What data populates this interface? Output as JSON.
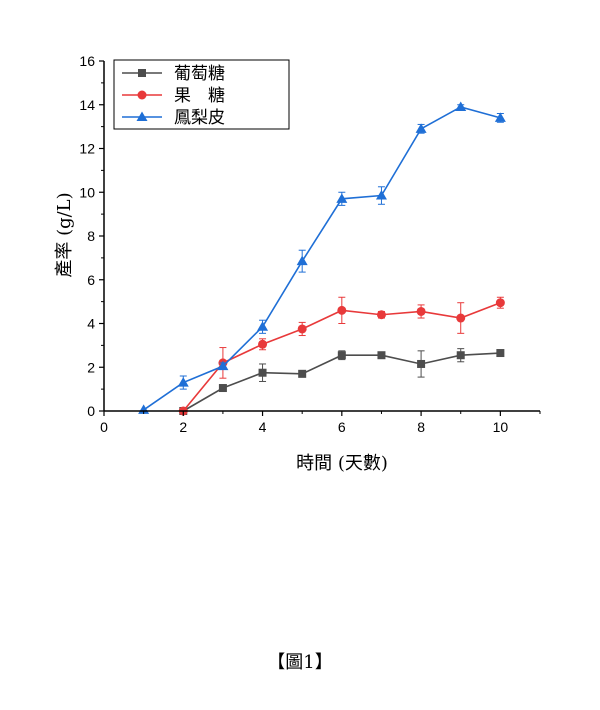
{
  "chart_data": {
    "type": "line",
    "xlabel": "時間 (天數)",
    "ylabel": "產率 (g/L)",
    "xlim": [
      0,
      11
    ],
    "ylim": [
      0,
      16
    ],
    "xticks": [
      0,
      2,
      4,
      6,
      8,
      10
    ],
    "yticks": [
      0,
      2,
      4,
      6,
      8,
      10,
      12,
      14,
      16
    ],
    "grid": false,
    "legend_position": "top-left",
    "x": [
      1,
      2,
      3,
      4,
      5,
      6,
      7,
      8,
      9,
      10
    ],
    "series": [
      {
        "name": "葡萄糖",
        "color": "#4d4d4d",
        "marker": "square",
        "values": [
          null,
          0.0,
          1.05,
          1.75,
          1.7,
          2.55,
          2.55,
          2.15,
          2.55,
          2.65
        ],
        "errors": [
          null,
          0.0,
          0.1,
          0.4,
          0.15,
          0.2,
          0.1,
          0.6,
          0.3,
          0.1
        ]
      },
      {
        "name": "果　糖",
        "color": "#e8393a",
        "marker": "circle",
        "values": [
          null,
          0.0,
          2.2,
          3.05,
          3.75,
          4.6,
          4.4,
          4.55,
          4.25,
          4.95
        ],
        "errors": [
          null,
          0.0,
          0.7,
          0.25,
          0.3,
          0.6,
          0.15,
          0.3,
          0.7,
          0.25
        ]
      },
      {
        "name": "鳳梨皮",
        "color": "#1f6fd6",
        "marker": "triangle",
        "values": [
          0.05,
          1.3,
          2.05,
          3.85,
          6.85,
          9.7,
          9.85,
          12.9,
          13.9,
          13.4
        ],
        "errors": [
          0.0,
          0.3,
          0.15,
          0.3,
          0.5,
          0.3,
          0.4,
          0.2,
          0.1,
          0.2
        ]
      }
    ]
  },
  "caption": "【圖1】"
}
